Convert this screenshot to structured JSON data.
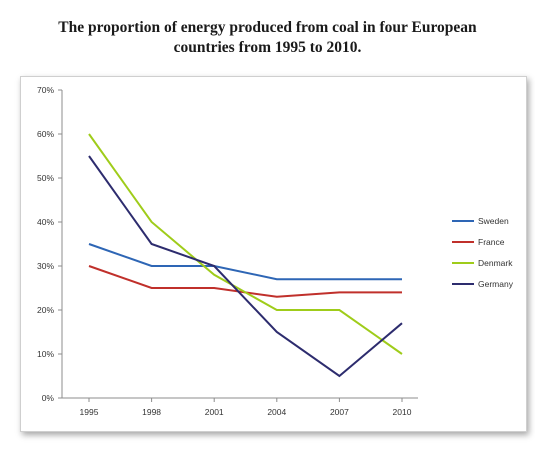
{
  "chart_data": {
    "type": "line",
    "title_line1": "The proportion of energy produced from coal in four European",
    "title_line2": "countries from 1995 to 2010.",
    "categories": [
      "1995",
      "1998",
      "2001",
      "2004",
      "2007",
      "2010"
    ],
    "ylim": [
      0,
      70
    ],
    "yticks": [
      0,
      10,
      20,
      30,
      40,
      50,
      60,
      70
    ],
    "ytick_labels": [
      "0%",
      "10%",
      "20%",
      "30%",
      "40%",
      "50%",
      "60%",
      "70%"
    ],
    "grid": false,
    "legend_position": "right",
    "series": [
      {
        "name": "Sweden",
        "color": "#2e66b5",
        "values": [
          35,
          30,
          30,
          27,
          27,
          27
        ]
      },
      {
        "name": "France",
        "color": "#c0302b",
        "values": [
          30,
          25,
          25,
          23,
          24,
          24
        ]
      },
      {
        "name": "Denmark",
        "color": "#9fcc1a",
        "values": [
          60,
          40,
          28,
          20,
          20,
          10
        ]
      },
      {
        "name": "Germany",
        "color": "#2d2c6e",
        "values": [
          55,
          35,
          30,
          15,
          5,
          17
        ]
      }
    ]
  }
}
